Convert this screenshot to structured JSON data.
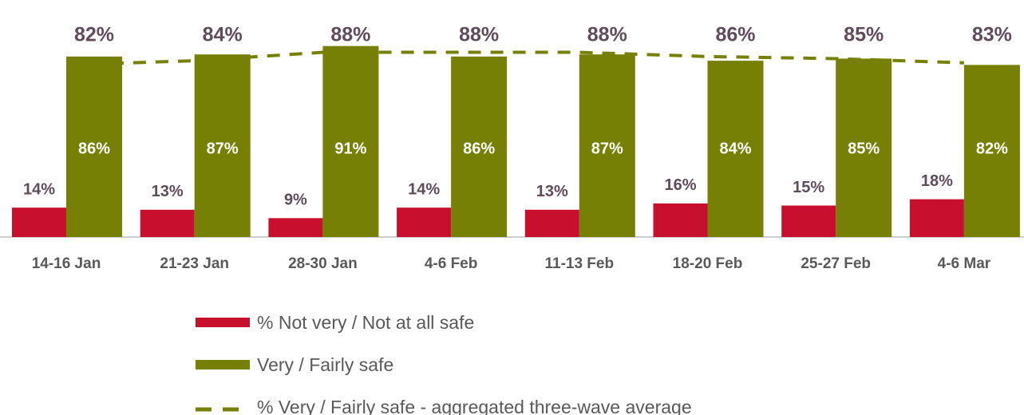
{
  "chart_data": {
    "type": "bar",
    "categories": [
      "14-16 Jan",
      "21-23 Jan",
      "28-30 Jan",
      "4-6 Feb",
      "11-13 Feb",
      "18-20 Feb",
      "25-27 Feb",
      "4-6 Mar"
    ],
    "ylim": [
      0,
      100
    ],
    "series": [
      {
        "name": "% Not very / Not at all safe",
        "color": "#c8102e",
        "values": [
          14,
          13,
          9,
          14,
          13,
          16,
          15,
          18
        ],
        "value_labels": [
          "14%",
          "13%",
          "9%",
          "14%",
          "13%",
          "16%",
          "15%",
          "18%"
        ]
      },
      {
        "name": "Very / Fairly safe",
        "color": "#768005",
        "values": [
          86,
          87,
          91,
          86,
          87,
          84,
          85,
          82
        ],
        "value_labels": [
          "86%",
          "87%",
          "91%",
          "86%",
          "87%",
          "84%",
          "85%",
          "82%"
        ]
      },
      {
        "name": "% Very / Fairly safe - aggregated three-wave average",
        "type": "line",
        "dashed": true,
        "color": "#768005",
        "values": [
          82,
          84,
          88,
          88,
          88,
          86,
          85,
          83
        ],
        "value_labels": [
          "82%",
          "84%",
          "88%",
          "88%",
          "88%",
          "86%",
          "85%",
          "83%"
        ]
      }
    ]
  }
}
